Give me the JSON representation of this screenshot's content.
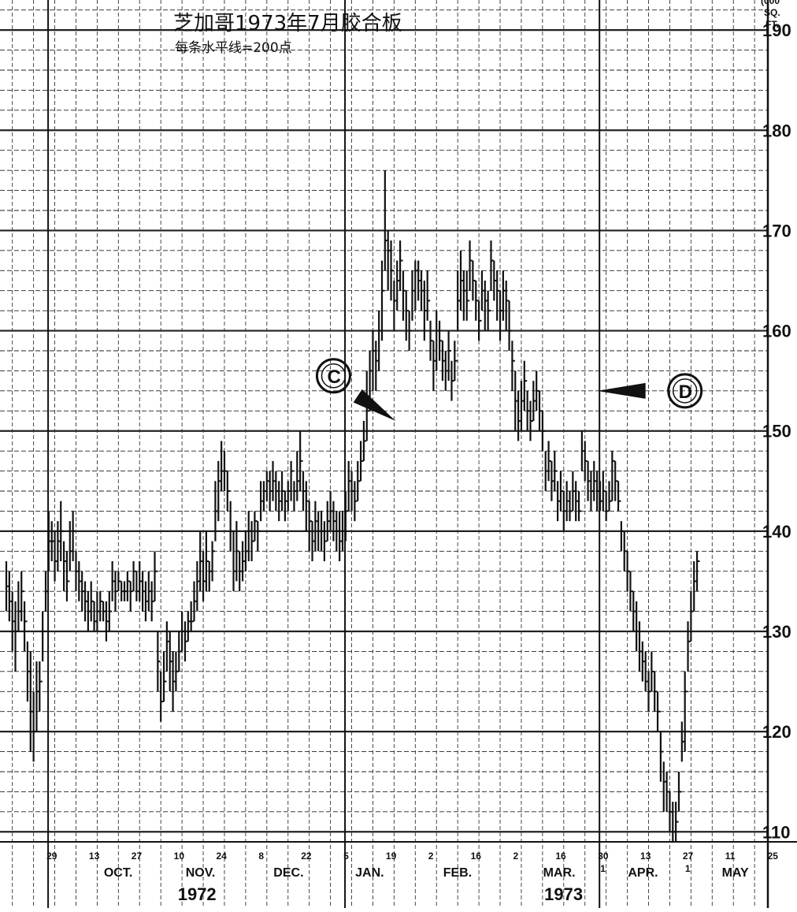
{
  "chart_data": {
    "type": "bar",
    "subtype": "ohlc-high-low-close",
    "title": "芝加哥1973年7月胶合板",
    "subtitle": "每条水平线=200点",
    "unit_label": [
      "(000",
      "SQ.",
      "FT."
    ],
    "ylim": [
      109,
      193
    ],
    "yticks": [
      110,
      120,
      130,
      140,
      150,
      160,
      170,
      180,
      190
    ],
    "y_axis_side": "right",
    "grid": true,
    "x_day_ticks": [
      {
        "label": "29",
        "x": 9
      },
      {
        "label": "13",
        "x": 23
      },
      {
        "label": "27",
        "x": 37
      },
      {
        "label": "10",
        "x": 51
      },
      {
        "label": "24",
        "x": 65
      },
      {
        "label": "8",
        "x": 79
      },
      {
        "label": "22",
        "x": 93
      },
      {
        "label": "5",
        "x": 107
      },
      {
        "label": "19",
        "x": 121
      },
      {
        "label": "2",
        "x": 135
      },
      {
        "label": "16",
        "x": 149
      },
      {
        "label": "2",
        "x": 163
      },
      {
        "label": "16",
        "x": 177
      },
      {
        "label": "30",
        "x": 191
      },
      {
        "label": "13",
        "x": 205
      },
      {
        "label": "27",
        "x": 219
      },
      {
        "label": "11",
        "x": 233
      },
      {
        "label": "25",
        "x": 247
      }
    ],
    "x_day_ticks_row2": [
      {
        "label": "1",
        "x": 191
      },
      {
        "label": "1",
        "x": 219
      }
    ],
    "month_labels": [
      {
        "label": "OCT.",
        "x": 30
      },
      {
        "label": "NOV.",
        "x": 57
      },
      {
        "label": "DEC.",
        "x": 86
      },
      {
        "label": "JAN.",
        "x": 113
      },
      {
        "label": "FEB.",
        "x": 142
      },
      {
        "label": "MAR.",
        "x": 175
      },
      {
        "label": "APR.",
        "x": 203
      },
      {
        "label": "MAY",
        "x": 234
      }
    ],
    "year_labels": [
      {
        "label": "1972",
        "x": 57
      },
      {
        "label": "1973",
        "x": 178
      }
    ],
    "annotations": [
      {
        "label": "C",
        "x": 111,
        "y": 155.5,
        "arrow_to_x": 131.5,
        "arrow_to_y": 151,
        "arrow_from_x": 119,
        "arrow_from_y": 153.5
      },
      {
        "label": "D",
        "x": 227,
        "y": 154,
        "arrow_to_x": 198,
        "arrow_to_y": 154,
        "arrow_from_x": 214,
        "arrow_from_y": 154
      }
    ],
    "x_range": [
      3,
      251
    ],
    "bars": [
      [
        3,
        134.5,
        137,
        132
      ],
      [
        4,
        133,
        136,
        131
      ],
      [
        5,
        131,
        134,
        128
      ],
      [
        6,
        130,
        133,
        126
      ],
      [
        7,
        132,
        135,
        130
      ],
      [
        8,
        134,
        136,
        131
      ],
      [
        9,
        131,
        133,
        128
      ],
      [
        10,
        126,
        129,
        123
      ],
      [
        11,
        122,
        128,
        118
      ],
      [
        12,
        120,
        124,
        117
      ],
      [
        13,
        124,
        127,
        120
      ],
      [
        14,
        125,
        127,
        122
      ],
      [
        15,
        130,
        132,
        127
      ],
      [
        16,
        134,
        136,
        132
      ],
      [
        17,
        139,
        142,
        136
      ],
      [
        18,
        139,
        141,
        137
      ],
      [
        19,
        137,
        140,
        135
      ],
      [
        20,
        139,
        141,
        136
      ],
      [
        21,
        140,
        143,
        137
      ],
      [
        22,
        137,
        139,
        134
      ],
      [
        23,
        135,
        138,
        133
      ],
      [
        24,
        138,
        141,
        136
      ],
      [
        25,
        140,
        142,
        137
      ],
      [
        26,
        136,
        138,
        134
      ],
      [
        27,
        135,
        137,
        133
      ],
      [
        28,
        134,
        136,
        132
      ],
      [
        29,
        133,
        135,
        131
      ],
      [
        30,
        132,
        134,
        130
      ],
      [
        31,
        133,
        135,
        131
      ],
      [
        32,
        131,
        133,
        130
      ],
      [
        33,
        132,
        134,
        130
      ],
      [
        34,
        133,
        134,
        131
      ],
      [
        35,
        132,
        133,
        131
      ],
      [
        36,
        131,
        133,
        129
      ],
      [
        37,
        132,
        134,
        130
      ],
      [
        38,
        135,
        137,
        133
      ],
      [
        39,
        134,
        136,
        132
      ],
      [
        40,
        135,
        136,
        134
      ],
      [
        41,
        134,
        135,
        133
      ],
      [
        42,
        134,
        135,
        133
      ],
      [
        43,
        135,
        136,
        133
      ],
      [
        44,
        134,
        135,
        132
      ],
      [
        45,
        136,
        137,
        134
      ],
      [
        46,
        134,
        136,
        133
      ],
      [
        47,
        135,
        137,
        133
      ],
      [
        48,
        134,
        136,
        132
      ],
      [
        49,
        133,
        135,
        131
      ],
      [
        50,
        134,
        136,
        132
      ],
      [
        51,
        133,
        135,
        131
      ],
      [
        52,
        136,
        138,
        133
      ],
      [
        53,
        127,
        130,
        124
      ],
      [
        54,
        123,
        126,
        121
      ],
      [
        55,
        125,
        128,
        123
      ],
      [
        56,
        129,
        131,
        126
      ],
      [
        57,
        127,
        130,
        124
      ],
      [
        58,
        125,
        128,
        122
      ],
      [
        59,
        126,
        128,
        124
      ],
      [
        60,
        128,
        130,
        126
      ],
      [
        61,
        130,
        132,
        128
      ],
      [
        62,
        129,
        131,
        127
      ],
      [
        63,
        131,
        132,
        129
      ],
      [
        64,
        131,
        133,
        130
      ],
      [
        65,
        133,
        135,
        131
      ],
      [
        66,
        135,
        137,
        132
      ],
      [
        67,
        137,
        140,
        134
      ],
      [
        68,
        135,
        138,
        133
      ],
      [
        69,
        137,
        140,
        134
      ],
      [
        70,
        136,
        137,
        134
      ],
      [
        71,
        138,
        139,
        135
      ],
      [
        72,
        142,
        145,
        139
      ],
      [
        73,
        145,
        147,
        141
      ],
      [
        74,
        146,
        149,
        144
      ],
      [
        75,
        146,
        148,
        144
      ],
      [
        76,
        144,
        146,
        142
      ],
      [
        77,
        140,
        143,
        138
      ],
      [
        78,
        136,
        140,
        134
      ],
      [
        79,
        138,
        141,
        135
      ],
      [
        80,
        136,
        138,
        134
      ],
      [
        81,
        137,
        139,
        135
      ],
      [
        82,
        138,
        140,
        136
      ],
      [
        83,
        140,
        142,
        137
      ],
      [
        84,
        139,
        141,
        137
      ],
      [
        85,
        141,
        142,
        139
      ],
      [
        86,
        140,
        141,
        138
      ],
      [
        87,
        143,
        145,
        141
      ],
      [
        88,
        144,
        145,
        142
      ],
      [
        89,
        145,
        146,
        143
      ],
      [
        90,
        144,
        146,
        142
      ],
      [
        91,
        145,
        147,
        143
      ],
      [
        92,
        144,
        146,
        142
      ],
      [
        93,
        143,
        145,
        141
      ],
      [
        94,
        144,
        146,
        142
      ],
      [
        95,
        143,
        144,
        141
      ],
      [
        96,
        144,
        145,
        142
      ],
      [
        97,
        146,
        147,
        143
      ],
      [
        98,
        144,
        145,
        142
      ],
      [
        99,
        145,
        148,
        143
      ],
      [
        100,
        147,
        150,
        144
      ],
      [
        101,
        144,
        146,
        142
      ],
      [
        102,
        143,
        145,
        140
      ],
      [
        103,
        141,
        143,
        138
      ],
      [
        104,
        139,
        141,
        137
      ],
      [
        105,
        141,
        143,
        138
      ],
      [
        106,
        140,
        142,
        138
      ],
      [
        107,
        140,
        142,
        138
      ],
      [
        108,
        139,
        141,
        137
      ],
      [
        109,
        141,
        143,
        139
      ],
      [
        110,
        142,
        144,
        140
      ],
      [
        111,
        141,
        143,
        139
      ],
      [
        112,
        140,
        142,
        138
      ],
      [
        113,
        139,
        142,
        137
      ],
      [
        114,
        140,
        142,
        138
      ],
      [
        115,
        142,
        144,
        139
      ],
      [
        116,
        145,
        147,
        142
      ],
      [
        117,
        144,
        146,
        142
      ],
      [
        118,
        143,
        145,
        141
      ],
      [
        119,
        145,
        147,
        143
      ],
      [
        120,
        147,
        149,
        145
      ],
      [
        121,
        149,
        151,
        147
      ],
      [
        122,
        152,
        156,
        149
      ],
      [
        123,
        156,
        158,
        152
      ],
      [
        124,
        158,
        160,
        154
      ],
      [
        125,
        157,
        159,
        154
      ],
      [
        126,
        160,
        162,
        156
      ],
      [
        127,
        164,
        167,
        159
      ],
      [
        128,
        169,
        176,
        166
      ],
      [
        129,
        168,
        170,
        164
      ],
      [
        130,
        166,
        169,
        163
      ],
      [
        131,
        163,
        165,
        160
      ],
      [
        132,
        165,
        167,
        162
      ],
      [
        133,
        167,
        169,
        164
      ],
      [
        134,
        164,
        166,
        161
      ],
      [
        135,
        162,
        164,
        159
      ],
      [
        136,
        160,
        162,
        158
      ],
      [
        137,
        164,
        166,
        161
      ],
      [
        138,
        166,
        167,
        162
      ],
      [
        139,
        165,
        167,
        163
      ],
      [
        140,
        164,
        166,
        162
      ],
      [
        141,
        162,
        165,
        159
      ],
      [
        142,
        163,
        166,
        161
      ],
      [
        143,
        159,
        161,
        157
      ],
      [
        144,
        157,
        159,
        154
      ],
      [
        145,
        160,
        162,
        156
      ],
      [
        146,
        159,
        161,
        157
      ],
      [
        147,
        157,
        159,
        155
      ],
      [
        148,
        156,
        158,
        154
      ],
      [
        149,
        158,
        160,
        155
      ],
      [
        150,
        155,
        157,
        153
      ],
      [
        151,
        157,
        159,
        155
      ],
      [
        152,
        163,
        166,
        160
      ],
      [
        153,
        165,
        168,
        162
      ],
      [
        154,
        164,
        166,
        161
      ],
      [
        155,
        163,
        166,
        161
      ],
      [
        156,
        167,
        169,
        164
      ],
      [
        157,
        165,
        167,
        163
      ],
      [
        158,
        163,
        165,
        161
      ],
      [
        159,
        161,
        163,
        159
      ],
      [
        160,
        164,
        166,
        162
      ],
      [
        161,
        163,
        165,
        160
      ],
      [
        162,
        162,
        164,
        160
      ],
      [
        163,
        167,
        169,
        164
      ],
      [
        164,
        165,
        167,
        163
      ],
      [
        165,
        164,
        166,
        161
      ],
      [
        166,
        162,
        164,
        159
      ],
      [
        167,
        164,
        166,
        161
      ],
      [
        168,
        163,
        165,
        160
      ],
      [
        169,
        160,
        163,
        158
      ],
      [
        170,
        157,
        159,
        154
      ],
      [
        171,
        153,
        156,
        150
      ],
      [
        172,
        151,
        154,
        149
      ],
      [
        173,
        153,
        155,
        150
      ],
      [
        174,
        155,
        157,
        152
      ],
      [
        175,
        152,
        154,
        150
      ],
      [
        176,
        151,
        153,
        149
      ],
      [
        177,
        153,
        155,
        151
      ],
      [
        178,
        154,
        156,
        152
      ],
      [
        179,
        152,
        154,
        150
      ],
      [
        180,
        150,
        152,
        148
      ],
      [
        181,
        146,
        148,
        144
      ],
      [
        182,
        147,
        149,
        145
      ],
      [
        183,
        145,
        147,
        143
      ],
      [
        184,
        146,
        148,
        144
      ],
      [
        185,
        143,
        145,
        141
      ],
      [
        186,
        144,
        146,
        142
      ],
      [
        187,
        142,
        144,
        140
      ],
      [
        188,
        143,
        145,
        141
      ],
      [
        189,
        142,
        144,
        141
      ],
      [
        190,
        144,
        146,
        142
      ],
      [
        191,
        143,
        145,
        141
      ],
      [
        192,
        142,
        144,
        141
      ],
      [
        193,
        148,
        150,
        146
      ],
      [
        194,
        147,
        149,
        145
      ],
      [
        195,
        145,
        147,
        143
      ],
      [
        196,
        144,
        146,
        142
      ],
      [
        197,
        145,
        147,
        143
      ],
      [
        198,
        144,
        146,
        142
      ],
      [
        199,
        143,
        145,
        142
      ],
      [
        200,
        144,
        146,
        142
      ],
      [
        201,
        142,
        144,
        141
      ],
      [
        202,
        143,
        145,
        142
      ],
      [
        203,
        147,
        148,
        143
      ],
      [
        204,
        145,
        147,
        143
      ],
      [
        205,
        143,
        145,
        142
      ],
      [
        206,
        140,
        141,
        138
      ],
      [
        207,
        138,
        140,
        136
      ],
      [
        208,
        136,
        138,
        134
      ],
      [
        209,
        134,
        136,
        132
      ],
      [
        210,
        132,
        134,
        130
      ],
      [
        211,
        130,
        133,
        128
      ],
      [
        212,
        128,
        131,
        126
      ],
      [
        213,
        127,
        129,
        125
      ],
      [
        214,
        125,
        128,
        124
      ],
      [
        215,
        124,
        126,
        122
      ],
      [
        216,
        126,
        128,
        124
      ],
      [
        217,
        124,
        126,
        122
      ],
      [
        218,
        122,
        124,
        120
      ],
      [
        219,
        118,
        120,
        115
      ],
      [
        220,
        115,
        117,
        112
      ],
      [
        221,
        114,
        116,
        112
      ],
      [
        222,
        112,
        114,
        110
      ],
      [
        223,
        110,
        113,
        109
      ],
      [
        224,
        111,
        113,
        109
      ],
      [
        225,
        114,
        116,
        112
      ],
      [
        226,
        119,
        121,
        117
      ],
      [
        227,
        124,
        126,
        118
      ],
      [
        228,
        129,
        131,
        126
      ],
      [
        229,
        132,
        134,
        129
      ],
      [
        230,
        135,
        137,
        132
      ],
      [
        231,
        137,
        138,
        134
      ]
    ]
  }
}
